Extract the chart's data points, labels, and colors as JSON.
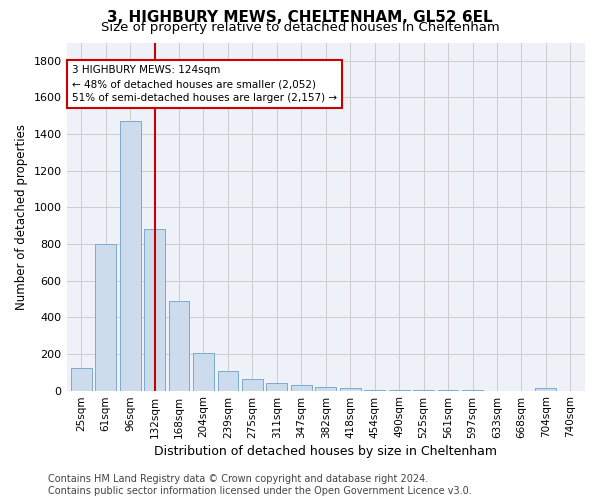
{
  "title_line1": "3, HIGHBURY MEWS, CHELTENHAM, GL52 6EL",
  "title_line2": "Size of property relative to detached houses in Cheltenham",
  "xlabel": "Distribution of detached houses by size in Cheltenham",
  "ylabel": "Number of detached properties",
  "footer_line1": "Contains HM Land Registry data © Crown copyright and database right 2024.",
  "footer_line2": "Contains public sector information licensed under the Open Government Licence v3.0.",
  "categories": [
    "25sqm",
    "61sqm",
    "96sqm",
    "132sqm",
    "168sqm",
    "204sqm",
    "239sqm",
    "275sqm",
    "311sqm",
    "347sqm",
    "382sqm",
    "418sqm",
    "454sqm",
    "490sqm",
    "525sqm",
    "561sqm",
    "597sqm",
    "633sqm",
    "668sqm",
    "704sqm",
    "740sqm"
  ],
  "values": [
    125,
    800,
    1470,
    880,
    490,
    205,
    105,
    65,
    42,
    33,
    22,
    14,
    5,
    3,
    2,
    1,
    1,
    0,
    0,
    15,
    0
  ],
  "bar_color": "#ccdcec",
  "bar_edge_color": "#7aabcf",
  "marker_idx": 3,
  "marker_label_line1": "3 HIGHBURY MEWS: 124sqm",
  "marker_label_line2": "← 48% of detached houses are smaller (2,052)",
  "marker_label_line3": "51% of semi-detached houses are larger (2,157) →",
  "marker_color": "#cc0000",
  "annotation_box_color": "#cc0000",
  "ylim": [
    0,
    1900
  ],
  "yticks": [
    0,
    200,
    400,
    600,
    800,
    1000,
    1200,
    1400,
    1600,
    1800
  ],
  "grid_color": "#cccccc",
  "bg_color": "#eef2f8",
  "title1_fontsize": 11,
  "title2_fontsize": 9.5,
  "ylabel_fontsize": 8.5,
  "xlabel_fontsize": 9,
  "tick_fontsize": 7.5,
  "footer_fontsize": 7,
  "annot_fontsize": 7.5
}
